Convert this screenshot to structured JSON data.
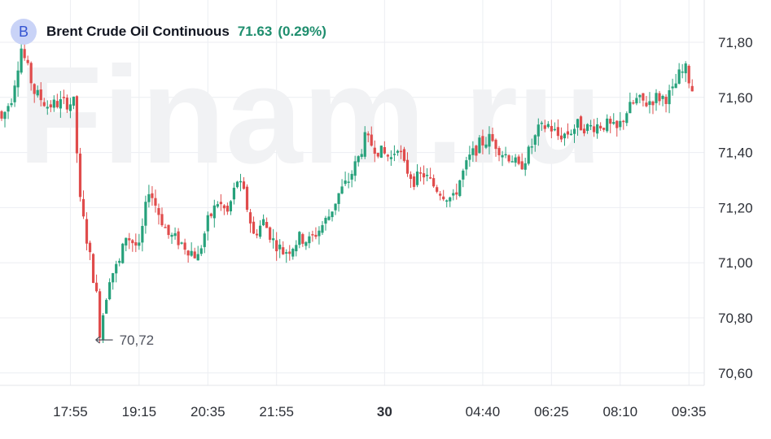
{
  "header": {
    "badge": "B",
    "symbol_name": "Brent Crude Oil Continuous",
    "last_price": "71.63",
    "change_pct": "(0.29%)"
  },
  "watermark": "Finam.ru",
  "colors": {
    "up": "#26a17b",
    "down": "#e04c4c",
    "grid": "#eceef2",
    "header_text": "#1f8e6e"
  },
  "chart_data": {
    "type": "candlestick",
    "ylim": [
      70.6,
      71.85
    ],
    "y_ticks": [
      {
        "value": 71.8,
        "label": "71,80"
      },
      {
        "value": 71.6,
        "label": "71,60"
      },
      {
        "value": 71.4,
        "label": "71,40"
      },
      {
        "value": 71.2,
        "label": "71,20"
      },
      {
        "value": 71.0,
        "label": "71,00"
      },
      {
        "value": 70.8,
        "label": "70,80"
      },
      {
        "value": 70.6,
        "label": "70,60"
      }
    ],
    "x_ticks": [
      {
        "index": 21,
        "label": "17:55",
        "bold": false
      },
      {
        "index": 42,
        "label": "19:15",
        "bold": false
      },
      {
        "index": 63,
        "label": "20:35",
        "bold": false
      },
      {
        "index": 84,
        "label": "21:55",
        "bold": false
      },
      {
        "index": 117,
        "label": "30",
        "bold": true
      },
      {
        "index": 147,
        "label": "04:40",
        "bold": false
      },
      {
        "index": 168,
        "label": "06:25",
        "bold": false
      },
      {
        "index": 189,
        "label": "08:10",
        "bold": false
      },
      {
        "index": 210,
        "label": "09:35",
        "bold": false
      }
    ],
    "annotation": {
      "index": 30,
      "value": 70.72,
      "label": "70,72"
    },
    "key_points": [
      [
        0,
        71.52
      ],
      [
        3,
        71.6
      ],
      [
        6,
        71.78
      ],
      [
        10,
        71.62
      ],
      [
        14,
        71.57
      ],
      [
        18,
        71.58
      ],
      [
        22,
        71.58
      ],
      [
        24,
        71.22
      ],
      [
        27,
        71.02
      ],
      [
        29,
        70.88
      ],
      [
        30,
        70.75
      ],
      [
        33,
        70.95
      ],
      [
        36,
        71.0
      ],
      [
        38,
        71.1
      ],
      [
        42,
        71.05
      ],
      [
        45,
        71.27
      ],
      [
        48,
        71.18
      ],
      [
        51,
        71.1
      ],
      [
        54,
        71.08
      ],
      [
        57,
        71.05
      ],
      [
        60,
        71.02
      ],
      [
        63,
        71.15
      ],
      [
        66,
        71.22
      ],
      [
        69,
        71.18
      ],
      [
        72,
        71.3
      ],
      [
        74,
        71.25
      ],
      [
        77,
        71.1
      ],
      [
        80,
        71.15
      ],
      [
        83,
        71.08
      ],
      [
        86,
        71.04
      ],
      [
        88,
        71.05
      ],
      [
        91,
        71.09
      ],
      [
        94,
        71.08
      ],
      [
        97,
        71.12
      ],
      [
        100,
        71.17
      ],
      [
        103,
        71.25
      ],
      [
        106,
        71.3
      ],
      [
        109,
        71.38
      ],
      [
        111,
        71.45
      ],
      [
        113,
        71.43
      ],
      [
        116,
        71.4
      ],
      [
        119,
        71.38
      ],
      [
        121,
        71.43
      ],
      [
        123,
        71.35
      ],
      [
        126,
        71.3
      ],
      [
        129,
        71.32
      ],
      [
        132,
        71.28
      ],
      [
        135,
        71.25
      ],
      [
        138,
        71.23
      ],
      [
        140,
        71.3
      ],
      [
        143,
        71.38
      ],
      [
        146,
        71.43
      ],
      [
        149,
        71.45
      ],
      [
        151,
        71.43
      ],
      [
        153,
        71.4
      ],
      [
        156,
        71.38
      ],
      [
        158,
        71.34
      ],
      [
        161,
        71.4
      ],
      [
        164,
        71.48
      ],
      [
        167,
        71.5
      ],
      [
        170,
        71.46
      ],
      [
        173,
        71.47
      ],
      [
        176,
        71.5
      ],
      [
        179,
        71.49
      ],
      [
        182,
        71.5
      ],
      [
        185,
        71.5
      ],
      [
        188,
        71.48
      ],
      [
        191,
        71.55
      ],
      [
        194,
        71.59
      ],
      [
        197,
        71.58
      ],
      [
        200,
        71.6
      ],
      [
        203,
        71.6
      ],
      [
        205,
        71.62
      ],
      [
        207,
        71.68
      ],
      [
        209,
        71.7
      ],
      [
        211,
        71.63
      ]
    ]
  }
}
